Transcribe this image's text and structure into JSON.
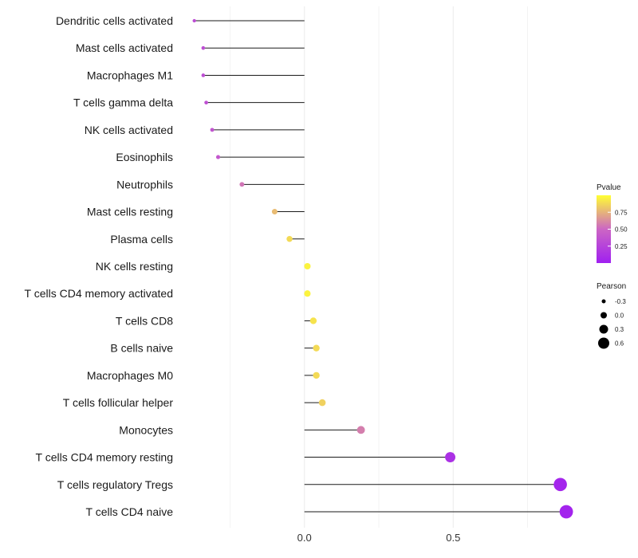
{
  "chart_data": {
    "type": "lollipop",
    "categories": [
      "Dendritic cells activated",
      "Mast cells activated",
      "Macrophages M1",
      "T cells gamma delta",
      "NK cells activated",
      "Eosinophils",
      "Neutrophils",
      "Mast cells resting",
      "Plasma cells",
      "NK cells resting",
      "T cells CD4 memory activated",
      "T cells CD8",
      "B cells naive",
      "Macrophages M0",
      "T cells follicular helper",
      "Monocytes",
      "T cells CD4 memory resting",
      "T cells regulatory  Tregs",
      "T cells CD4 naive"
    ],
    "pearson": [
      -0.37,
      -0.34,
      -0.34,
      -0.33,
      -0.31,
      -0.29,
      -0.21,
      -0.1,
      -0.05,
      0.01,
      0.01,
      0.03,
      0.04,
      0.04,
      0.06,
      0.19,
      0.49,
      0.86,
      0.88
    ],
    "pvalue": [
      0.32,
      0.33,
      0.33,
      0.34,
      0.38,
      0.4,
      0.55,
      0.78,
      0.88,
      0.96,
      0.96,
      0.91,
      0.88,
      0.88,
      0.85,
      0.58,
      0.12,
      0.04,
      0.03
    ],
    "xlim": [
      -0.42,
      0.92
    ],
    "xticks": [
      "0.0",
      "0.5"
    ],
    "xtick_values": [
      0.0,
      0.5
    ],
    "grid": true,
    "legend_position": "right",
    "legends": {
      "color": {
        "title": "Pvalue",
        "labels": [
          "0.75",
          "0.50",
          "0.25"
        ],
        "values": [
          0.75,
          0.5,
          0.25
        ],
        "range": [
          0.0,
          1.0
        ],
        "low_color": "#a020f0",
        "mid_color": "#cc66c4",
        "high_color": "#ffff33"
      },
      "size": {
        "title": "Pearson",
        "labels": [
          "-0.3",
          "0.0",
          "0.3",
          "0.6"
        ],
        "values": [
          -0.3,
          0.0,
          0.3,
          0.6
        ]
      }
    },
    "colors": {
      "segment": "#1a1a1a",
      "grid": "#ebebeb",
      "point_outline": "none"
    }
  }
}
